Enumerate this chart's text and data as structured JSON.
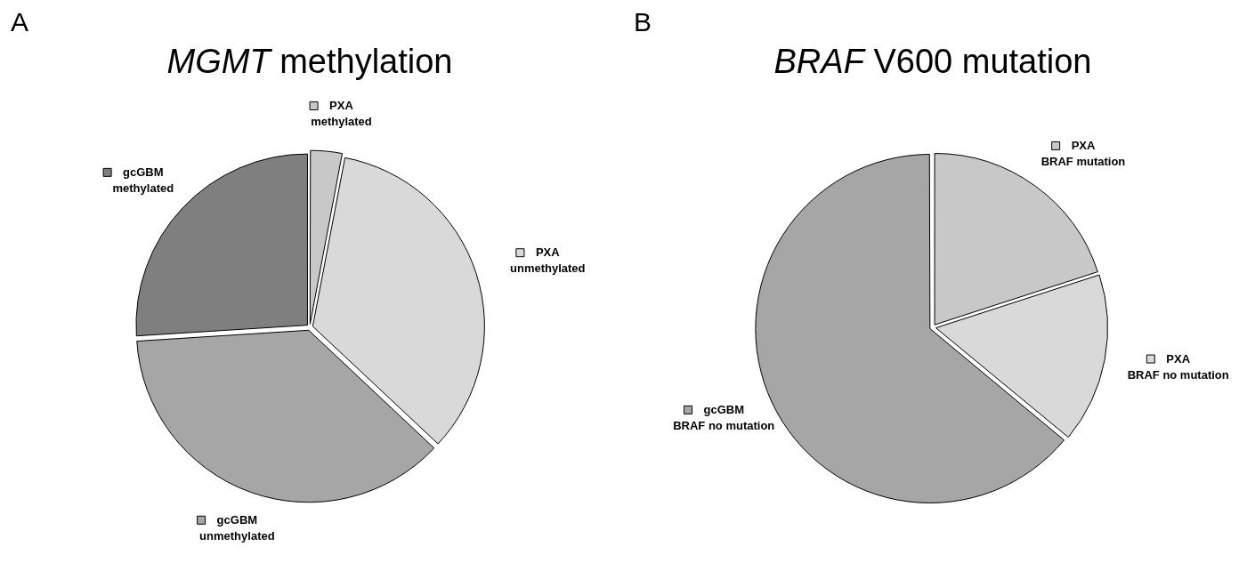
{
  "chart_data": [
    {
      "type": "pie",
      "title": "MGMT methylation",
      "annotations": [
        "A"
      ],
      "legend": "right",
      "categories": [
        "PXA methylated",
        "PXA unmethylated",
        "gcGBM unmethylated",
        "gcGBM methylated"
      ],
      "values": [
        3,
        34,
        37,
        26
      ],
      "colors": [
        "#c8c8c8",
        "#d9d9d9",
        "#a6a6a6",
        "#7f7f7f"
      ]
    },
    {
      "type": "pie",
      "title": "BRAF V600 mutation",
      "annotations": [
        "B"
      ],
      "legend": "right",
      "categories": [
        "PXA BRAF mutation",
        "PXA BRAF no mutation",
        "gcGBM BRAF no mutation"
      ],
      "values": [
        20,
        16,
        64
      ],
      "colors": [
        "#c8c8c8",
        "#d9d9d9",
        "#a6a6a6"
      ]
    }
  ]
}
